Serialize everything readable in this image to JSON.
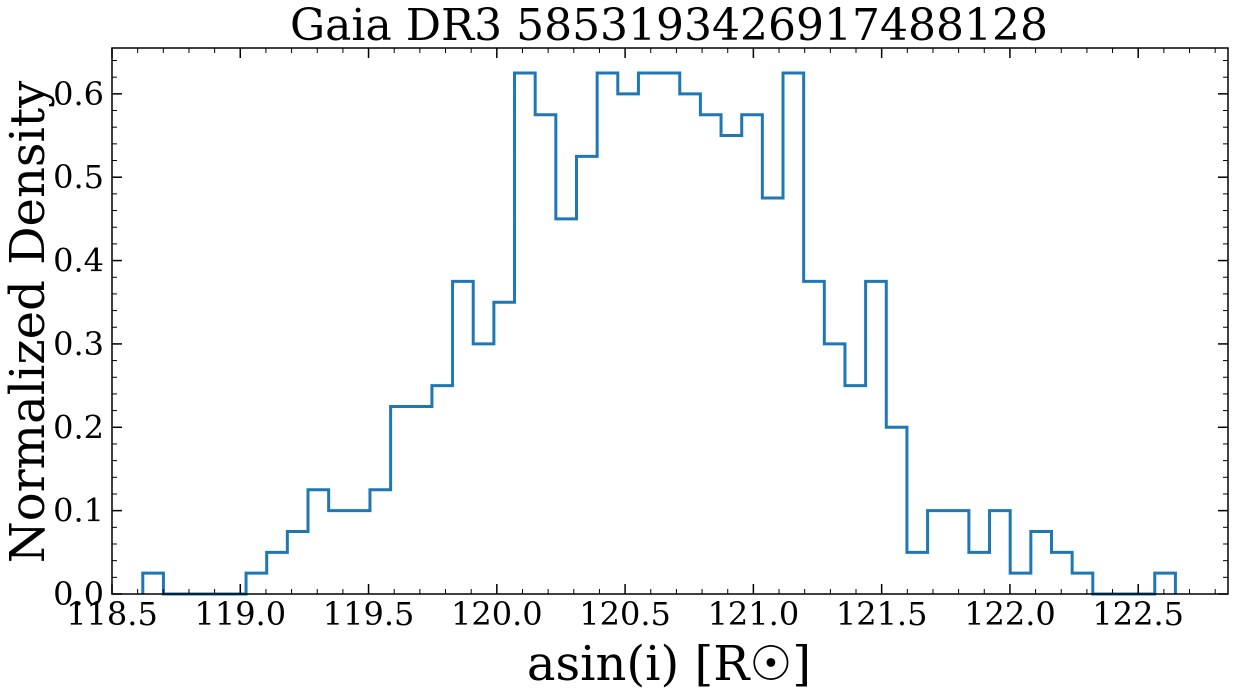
{
  "chart_data": {
    "type": "histogram",
    "title": "Gaia DR3 5853193426917488128",
    "xlabel": "asin(i) [R☉]",
    "ylabel": "Normalized Density",
    "xlim": [
      118.5,
      122.85
    ],
    "ylim": [
      0.0,
      0.655
    ],
    "xticks": [
      118.5,
      119.0,
      119.5,
      120.0,
      120.5,
      121.0,
      121.5,
      122.0,
      122.5
    ],
    "xtick_labels": [
      "118.5",
      "119.0",
      "119.5",
      "120.0",
      "120.5",
      "121.0",
      "121.5",
      "122.0",
      "122.5"
    ],
    "yticks": [
      0.0,
      0.1,
      0.2,
      0.3,
      0.4,
      0.5,
      0.6
    ],
    "ytick_labels": [
      "0.0",
      "0.1",
      "0.2",
      "0.3",
      "0.4",
      "0.5",
      "0.6"
    ],
    "grid": false,
    "histtype": "step",
    "color": "#1f77b4",
    "bin_start": 118.62,
    "bin_width": 0.0805,
    "values": [
      0.025,
      0.0,
      0.0,
      0.0,
      0.0,
      0.025,
      0.05,
      0.075,
      0.125,
      0.1,
      0.1,
      0.125,
      0.225,
      0.225,
      0.25,
      0.375,
      0.3,
      0.35,
      0.625,
      0.575,
      0.45,
      0.525,
      0.625,
      0.6,
      0.625,
      0.625,
      0.6,
      0.575,
      0.55,
      0.575,
      0.475,
      0.625,
      0.375,
      0.3,
      0.25,
      0.375,
      0.2,
      0.05,
      0.1,
      0.1,
      0.05,
      0.1,
      0.025,
      0.075,
      0.05,
      0.025,
      0.0,
      0.0,
      0.0,
      0.025
    ]
  }
}
